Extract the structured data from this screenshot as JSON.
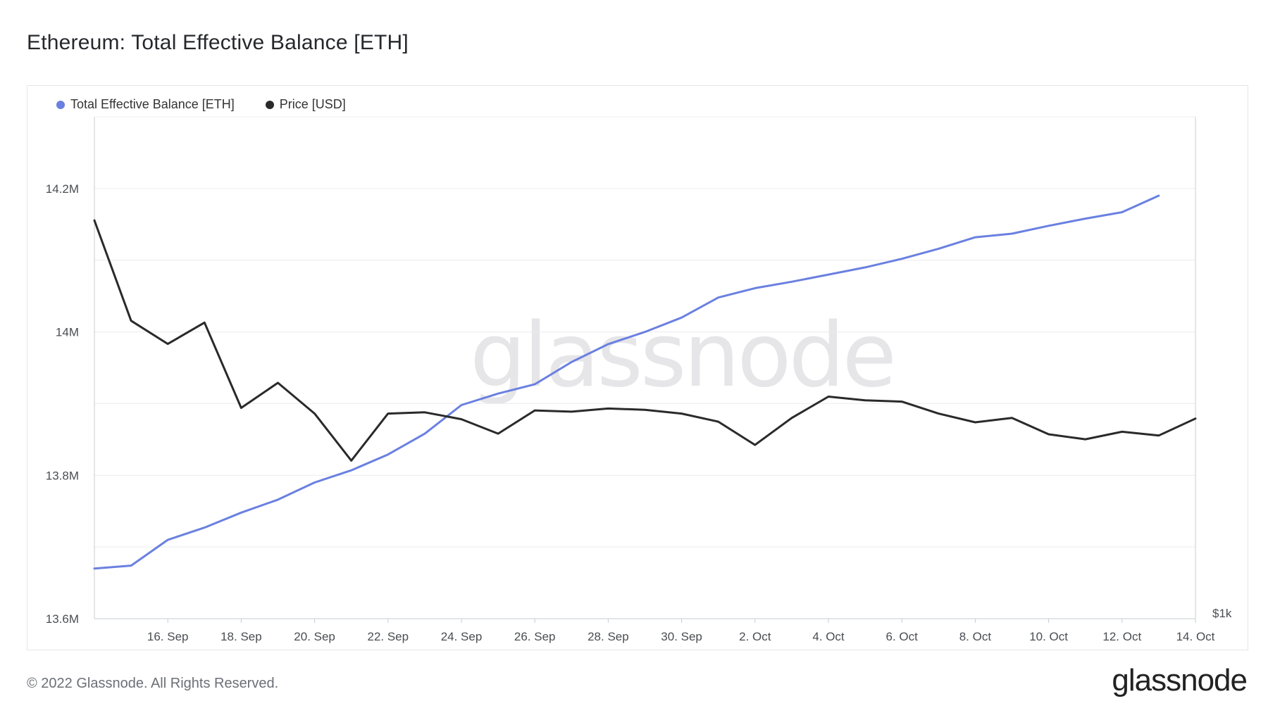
{
  "title": "Ethereum: Total Effective Balance [ETH]",
  "footer": {
    "copyright": "© 2022 Glassnode. All Rights Reserved.",
    "brand": "glassnode"
  },
  "watermark": "glassnode",
  "legend": [
    {
      "label": "Total Effective Balance [ETH]",
      "color": "#6a80e0"
    },
    {
      "label": "Price [USD]",
      "color": "#2a2a2a"
    }
  ],
  "chart_data": {
    "type": "line",
    "title": "Ethereum: Total Effective Balance [ETH]",
    "x": [
      "2022-09-14",
      "2022-09-15",
      "2022-09-16",
      "2022-09-17",
      "2022-09-18",
      "2022-09-19",
      "2022-09-20",
      "2022-09-21",
      "2022-09-22",
      "2022-09-23",
      "2022-09-24",
      "2022-09-25",
      "2022-09-26",
      "2022-09-27",
      "2022-09-28",
      "2022-09-29",
      "2022-09-30",
      "2022-10-01",
      "2022-10-02",
      "2022-10-03",
      "2022-10-04",
      "2022-10-05",
      "2022-10-06",
      "2022-10-07",
      "2022-10-08",
      "2022-10-09",
      "2022-10-10",
      "2022-10-11",
      "2022-10-12",
      "2022-10-13",
      "2022-10-14"
    ],
    "x_tick_labels": [
      "16. Sep",
      "18. Sep",
      "20. Sep",
      "22. Sep",
      "24. Sep",
      "26. Sep",
      "28. Sep",
      "30. Sep",
      "2. Oct",
      "4. Oct",
      "6. Oct",
      "8. Oct",
      "10. Oct",
      "12. Oct",
      "14. Oct"
    ],
    "x_tick_dates": [
      "2022-09-16",
      "2022-09-18",
      "2022-09-20",
      "2022-09-22",
      "2022-09-24",
      "2022-09-26",
      "2022-09-28",
      "2022-09-30",
      "2022-10-02",
      "2022-10-04",
      "2022-10-06",
      "2022-10-08",
      "2022-10-10",
      "2022-10-12",
      "2022-10-14"
    ],
    "y_left": {
      "ticks": [
        13600000,
        13800000,
        14000000,
        14200000
      ],
      "tick_labels": [
        "13.6M",
        "13.8M",
        "14M",
        "14.2M"
      ],
      "range": [
        13600000,
        14300000
      ]
    },
    "y_right": {
      "tick_labels": [
        "$1k"
      ]
    },
    "series": [
      {
        "name": "Total Effective Balance [ETH]",
        "color": "#6a80e0",
        "axis": "left",
        "values": [
          13670000,
          13674000,
          13710000,
          13727000,
          13748000,
          13766000,
          13790000,
          13807000,
          13829000,
          13858000,
          13898000,
          13914000,
          13927000,
          13958000,
          13983000,
          14000000,
          14020000,
          14048000,
          14061000,
          14070000,
          14080000,
          14090000,
          14102000,
          14116000,
          14132000,
          14137000,
          14148000,
          14158000,
          14167000,
          14190000,
          null
        ]
      },
      {
        "name": "Price [USD]",
        "color": "#2a2a2a",
        "axis": "right",
        "values": [
          1635,
          1475,
          1438,
          1472,
          1336,
          1376,
          1327,
          1252,
          1327,
          1329,
          1318,
          1295,
          1332,
          1330,
          1335,
          1333,
          1327,
          1314,
          1277,
          1320,
          1354,
          1348,
          1346,
          1327,
          1313,
          1320,
          1294,
          1286,
          1298,
          1292,
          1319
        ]
      }
    ],
    "grid": true,
    "legend_position": "top-left"
  }
}
